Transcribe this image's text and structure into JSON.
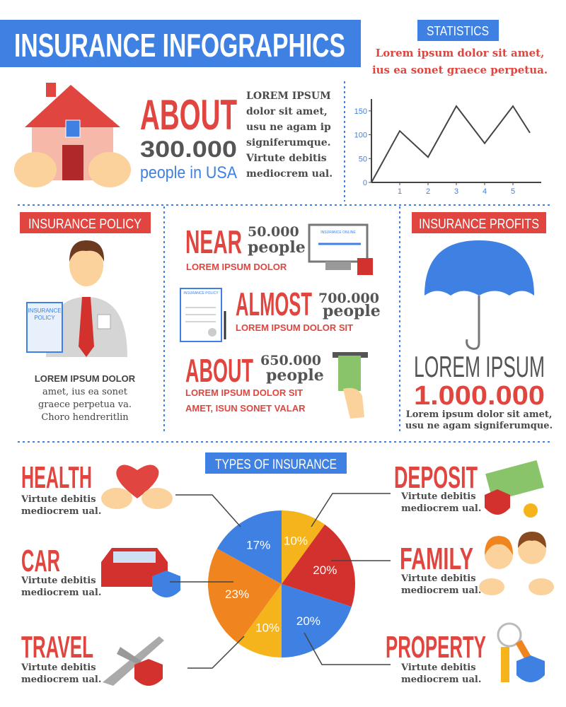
{
  "header": {
    "title": "INSURANCE INFOGRAPHICS"
  },
  "statistics": {
    "label": "STATISTICS",
    "lines": [
      "Lorem ipsum dolor sit amet,",
      "ius ea sonet graece perpetua."
    ]
  },
  "usa": {
    "word": "ABOUT",
    "number": "300.000",
    "unit": "people in USA",
    "lines": [
      "LOREM IPSUM",
      "dolor sit amet,",
      "usu ne agam ip",
      "signiferumque.",
      "Virtute debitis",
      "mediocrem ual."
    ]
  },
  "policy": {
    "label": "INSURANCE POLICY",
    "document_lines": [
      "INSURANCE",
      "POLICY"
    ],
    "lines": [
      "LOREM IPSUM DOLOR",
      "amet,  ius  ea sonet",
      "graece perpetua va.",
      "Choro hendreritlin"
    ]
  },
  "figures": [
    {
      "word": "NEAR",
      "number": "50.000",
      "unit": "people",
      "lines": [
        "LOREM IPSUM DOLOR"
      ],
      "icon_label": "INSURANCE ONLINE"
    },
    {
      "word": "ALMOST",
      "number": "700.000",
      "unit": "people",
      "lines": [
        "LOREM IPSUM DOLOR SIT"
      ],
      "icon_label": "INSURANCE POLICY"
    },
    {
      "word": "ABOUT",
      "number": "650.000",
      "unit": "people",
      "lines": [
        "LOREM IPSUM DOLOR SIT",
        "AMET, ISUN SONET VALAR"
      ]
    }
  ],
  "profits": {
    "label": "INSURANCE PROFITS",
    "heading": "LOREM IPSUM",
    "number": "1.000.000",
    "lines": [
      "Lorem ipsum dolor sit amet,",
      "usu ne agam signiferumque."
    ]
  },
  "types": {
    "label": "TYPES OF INSURANCE",
    "descriptions": [
      [
        "Virtute debitis",
        "mediocrem ual."
      ],
      [
        "Virtute debitis",
        "mediocrem ual."
      ],
      [
        "Virtute debitis",
        "mediocrem ual."
      ],
      [
        "Virtute debitis",
        "mediocrem ual."
      ],
      [
        "Virtute debitis",
        "mediocrem ual."
      ],
      [
        "Virtute debitis",
        "mediocrem ual."
      ]
    ]
  },
  "chart_data": [
    {
      "type": "line",
      "x": [
        0,
        1,
        2,
        3,
        4,
        5,
        5.6
      ],
      "series": [
        {
          "color": "#444444",
          "values": [
            0,
            108,
            53,
            160,
            82,
            160,
            104
          ]
        }
      ],
      "xlim": [
        0,
        6
      ],
      "ylim": [
        0,
        175
      ],
      "xticks": [
        1,
        2,
        3,
        4,
        5
      ],
      "yticks": [
        0,
        50,
        100,
        150
      ]
    },
    {
      "type": "pie",
      "categories": [
        "DEPOSIT",
        "FAMILY",
        "PROPERTY",
        "TRAVEL",
        "CAR",
        "HEALTH"
      ],
      "values": [
        10,
        20,
        20,
        10,
        23,
        17
      ],
      "value_labels": [
        "10%",
        "20%",
        "20%",
        "10%",
        "23%",
        "17%"
      ],
      "colors": [
        "#f5b41c",
        "#d3312d",
        "#3f80e3",
        "#f5b41c",
        "#f0841f",
        "#3f80e3"
      ]
    }
  ]
}
